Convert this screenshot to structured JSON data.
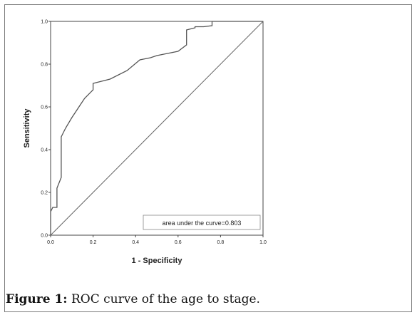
{
  "caption": {
    "label": "Figure 1:",
    "text": " ROC curve of the age to stage."
  },
  "chart_data": {
    "type": "line",
    "title": "",
    "xlabel": "1 - Specificity",
    "ylabel": "Sensitivity",
    "xlim": [
      0.0,
      1.0
    ],
    "ylim": [
      0.0,
      1.0
    ],
    "x_ticks": [
      "0.0",
      "0.2",
      "0.4",
      "0.6",
      "0.8",
      "1.0"
    ],
    "y_ticks": [
      "0.0",
      "0.2",
      "0.4",
      "0.6",
      "0.8",
      "1.0"
    ],
    "grid": false,
    "annotation": "area under the curve=0.803",
    "annotation_position": "bottom-right",
    "series": [
      {
        "x": [
          0.0,
          0.0,
          0.01,
          0.03,
          0.03,
          0.05,
          0.05,
          0.07,
          0.1,
          0.12,
          0.14,
          0.16,
          0.2,
          0.2,
          0.28,
          0.36,
          0.42,
          0.47,
          0.5,
          0.55,
          0.6,
          0.64,
          0.64,
          0.68,
          0.68,
          0.72,
          0.76,
          0.76,
          0.78,
          1.0
        ],
        "y": [
          0.0,
          0.11,
          0.13,
          0.13,
          0.22,
          0.27,
          0.46,
          0.5,
          0.55,
          0.58,
          0.61,
          0.64,
          0.68,
          0.71,
          0.73,
          0.77,
          0.82,
          0.83,
          0.84,
          0.85,
          0.86,
          0.89,
          0.96,
          0.97,
          0.975,
          0.975,
          0.98,
          1.0,
          1.0,
          1.0
        ]
      },
      {
        "x": [
          0.0,
          1.0
        ],
        "y": [
          0.0,
          1.0
        ]
      }
    ],
    "line_color": "#555555"
  }
}
